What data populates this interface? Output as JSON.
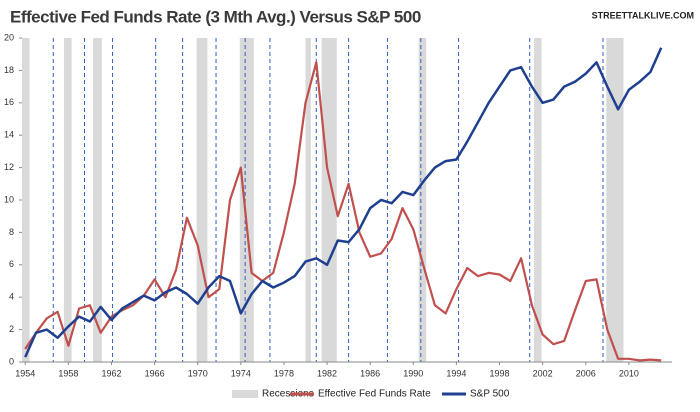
{
  "chart_data": {
    "type": "line",
    "title": "Effective Fed Funds Rate (3 Mth Avg.) Versus S&P 500",
    "watermark": "STREETTALKLIVE.COM",
    "x": [
      1954,
      1955,
      1956,
      1957,
      1958,
      1959,
      1960,
      1961,
      1962,
      1963,
      1964,
      1965,
      1966,
      1967,
      1968,
      1969,
      1970,
      1971,
      1972,
      1973,
      1974,
      1975,
      1976,
      1977,
      1978,
      1979,
      1980,
      1981,
      1982,
      1983,
      1984,
      1985,
      1986,
      1987,
      1988,
      1989,
      1990,
      1991,
      1992,
      1993,
      1994,
      1995,
      1996,
      1997,
      1998,
      1999,
      2000,
      2001,
      2002,
      2003,
      2004,
      2005,
      2006,
      2007,
      2008,
      2009,
      2010,
      2011,
      2012,
      2013
    ],
    "series": [
      {
        "name": "Effective Fed Funds Rate",
        "color": "#c0504d",
        "values": [
          0.8,
          1.8,
          2.7,
          3.1,
          1.0,
          3.3,
          3.5,
          1.8,
          2.8,
          3.2,
          3.5,
          4.1,
          5.1,
          4.0,
          5.7,
          8.9,
          7.2,
          4.0,
          4.5,
          10.0,
          12.0,
          5.5,
          5.0,
          5.5,
          8.0,
          11.0,
          16.0,
          18.5,
          12.0,
          9.0,
          11.0,
          8.0,
          6.5,
          6.7,
          7.6,
          9.5,
          8.2,
          5.8,
          3.5,
          3.0,
          4.5,
          5.8,
          5.3,
          5.5,
          5.4,
          5.0,
          6.4,
          3.5,
          1.7,
          1.1,
          1.3,
          3.2,
          5.0,
          5.1,
          2.0,
          0.2,
          0.2,
          0.1,
          0.15,
          0.1
        ]
      },
      {
        "name": "S&P 500",
        "color": "#1f3f8f",
        "values": [
          0.3,
          1.8,
          2.0,
          1.5,
          2.2,
          2.8,
          2.5,
          3.4,
          2.6,
          3.3,
          3.7,
          4.1,
          3.8,
          4.3,
          4.6,
          4.2,
          3.6,
          4.6,
          5.3,
          5.0,
          3.0,
          4.2,
          5.0,
          4.6,
          4.9,
          5.3,
          6.2,
          6.4,
          6.0,
          7.5,
          7.4,
          8.2,
          9.5,
          10.0,
          9.8,
          10.5,
          10.3,
          11.2,
          12.0,
          12.4,
          12.5,
          13.6,
          14.8,
          16.0,
          17.0,
          18.0,
          18.2,
          17.0,
          16.0,
          16.2,
          17.0,
          17.3,
          17.8,
          18.5,
          17.0,
          15.6,
          16.8,
          17.3,
          17.9,
          19.4
        ]
      }
    ],
    "recessions": {
      "name": "Recessions",
      "color": "#d9d9d9",
      "ranges": [
        [
          1953.7,
          1954.4
        ],
        [
          1957.6,
          1958.3
        ],
        [
          1960.3,
          1961.1
        ],
        [
          1969.9,
          1970.9
        ],
        [
          1973.9,
          1975.2
        ],
        [
          1980.0,
          1980.5
        ],
        [
          1981.5,
          1982.9
        ],
        [
          1990.5,
          1991.2
        ],
        [
          2001.2,
          2001.9
        ],
        [
          2007.9,
          2009.5
        ]
      ]
    },
    "markers": {
      "color": "#2f5fbf",
      "x": [
        1956.6,
        1959.5,
        1962.1,
        1966.1,
        1968.6,
        1971.7,
        1974.4,
        1976.7,
        1981.0,
        1984.0,
        1987.6,
        1990.7,
        1994.2,
        2000.8,
        2007.6
      ]
    },
    "xlim": [
      1953.7,
      2014
    ],
    "xticks": [
      1954,
      1958,
      1962,
      1966,
      1970,
      1974,
      1978,
      1982,
      1986,
      1990,
      1994,
      1998,
      2002,
      2006,
      2010
    ],
    "ylim": [
      0,
      20
    ],
    "yticks": [
      0,
      2,
      4,
      6,
      8,
      10,
      12,
      14,
      16,
      18,
      20
    ]
  }
}
